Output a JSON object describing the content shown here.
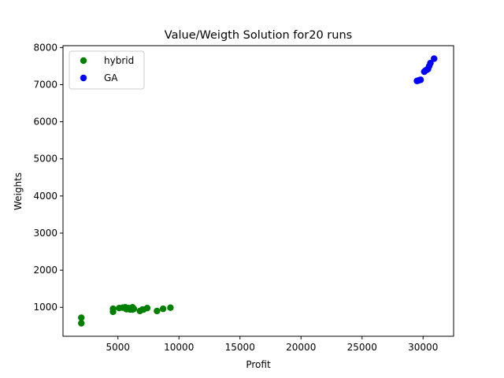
{
  "chart_data": {
    "type": "scatter",
    "title": "Value/Weigth Solution for20 runs",
    "xlabel": "Profit",
    "ylabel": "Weights",
    "xlim": [
      500,
      32500
    ],
    "ylim": [
      220,
      8050
    ],
    "xticks": [
      5000,
      10000,
      15000,
      20000,
      25000,
      30000
    ],
    "yticks": [
      1000,
      2000,
      3000,
      4000,
      5000,
      6000,
      7000,
      8000
    ],
    "grid": false,
    "legend_position": "top-left",
    "series": [
      {
        "name": "hybrid",
        "color": "#008000",
        "points": [
          [
            2000,
            720
          ],
          [
            2000,
            570
          ],
          [
            4600,
            960
          ],
          [
            4600,
            880
          ],
          [
            5100,
            980
          ],
          [
            5400,
            990
          ],
          [
            5600,
            1000
          ],
          [
            5700,
            950
          ],
          [
            5900,
            980
          ],
          [
            6000,
            940
          ],
          [
            6200,
            1000
          ],
          [
            6200,
            940
          ],
          [
            6300,
            960
          ],
          [
            6800,
            900
          ],
          [
            7000,
            940
          ],
          [
            7100,
            940
          ],
          [
            7400,
            980
          ],
          [
            8200,
            900
          ],
          [
            8700,
            960
          ],
          [
            9300,
            990
          ]
        ]
      },
      {
        "name": "GA",
        "color": "#0000ff",
        "points": [
          [
            29500,
            7100
          ],
          [
            29600,
            7110
          ],
          [
            29700,
            7120
          ],
          [
            29800,
            7130
          ],
          [
            30100,
            7350
          ],
          [
            30200,
            7380
          ],
          [
            30300,
            7400
          ],
          [
            30400,
            7420
          ],
          [
            30500,
            7500
          ],
          [
            30600,
            7580
          ],
          [
            30900,
            7700
          ]
        ]
      }
    ]
  }
}
